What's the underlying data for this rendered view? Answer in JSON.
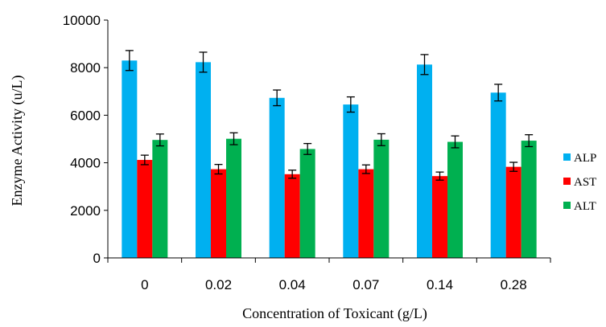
{
  "chart_data": {
    "type": "bar",
    "title": "",
    "xlabel": "Concentration of Toxicant (g/L)",
    "ylabel": "Enzyme Activity (u/L)",
    "categories": [
      "0",
      "0.02",
      "0.04",
      "0.07",
      "0.14",
      "0.28"
    ],
    "ylim": [
      0,
      10000
    ],
    "yticks": [
      0,
      2000,
      4000,
      6000,
      8000,
      10000
    ],
    "grid": false,
    "legend_position": "right",
    "series": [
      {
        "name": "ALP",
        "color": "#00B0F0",
        "values": [
          8300,
          8230,
          6730,
          6450,
          8130,
          6950
        ],
        "errors": [
          420,
          420,
          330,
          320,
          420,
          350
        ]
      },
      {
        "name": "AST",
        "color": "#FF0000",
        "values": [
          4120,
          3730,
          3520,
          3730,
          3440,
          3830
        ],
        "errors": [
          200,
          200,
          170,
          180,
          170,
          190
        ]
      },
      {
        "name": "ALT",
        "color": "#00B050",
        "values": [
          4960,
          5010,
          4580,
          4970,
          4880,
          4930
        ],
        "errors": [
          250,
          250,
          230,
          250,
          250,
          250
        ]
      }
    ]
  }
}
